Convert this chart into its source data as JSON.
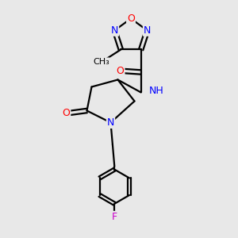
{
  "background_color": "#e8e8e8",
  "atom_colors": {
    "C": "#000000",
    "N": "#0000ff",
    "O": "#ff0000",
    "F": "#cc00cc",
    "H": "#5fa8a8"
  },
  "bond_color": "#000000",
  "bond_lw": 1.6,
  "font_size": 9,
  "small_font_size": 8
}
